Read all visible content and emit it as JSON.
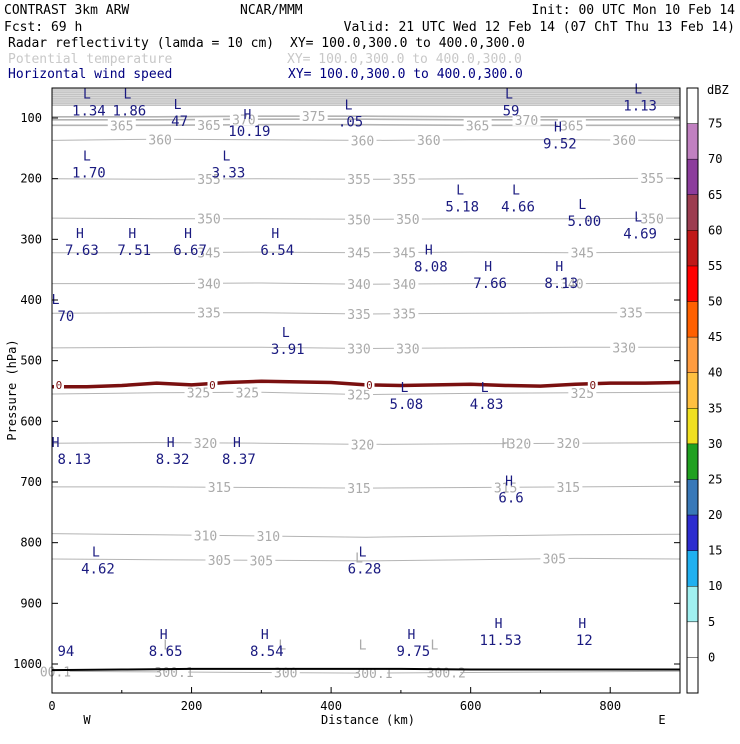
{
  "header": {
    "line1_left": "CONTRAST  3km ARW",
    "line1_mid": "NCAR/MMM",
    "line1_right": "Init: 00 UTC Mon 10 Feb 14",
    "line2_left": "Fcst:   69 h",
    "line2_right": "Valid: 21 UTC Wed 12 Feb 14 (07 ChT Thu 13 Feb 14)"
  },
  "fields": [
    {
      "name": "Radar reflectivity (lamda = 10 cm)",
      "xy": "XY= 100.0,300.0 to 400.0,300.0",
      "color": "#000000"
    },
    {
      "name": "Potential temperature",
      "xy": "XY= 100.0,300.0 to 400.0,300.0",
      "color": "#c8c8c8"
    },
    {
      "name": "Horizontal wind speed",
      "xy": "XY= 100.0,300.0 to 400.0,300.0",
      "color": "#000080"
    }
  ],
  "colors": {
    "theta": "#b4b4b4",
    "theta_label": "#aaaaaa",
    "wind": "#1a1a80",
    "zero_line": "#7a1010",
    "frame": "#000000"
  },
  "chart_data": {
    "type": "cross-section",
    "xlabel": "Distance (km)",
    "ylabel": "Pressure (hPa)",
    "xlim": [
      0,
      900
    ],
    "ylim_hpa": [
      1050,
      75
    ],
    "x_ticks": [
      0,
      200,
      400,
      600,
      800
    ],
    "y_ticks": [
      100,
      200,
      300,
      400,
      500,
      600,
      700,
      800,
      900,
      1000
    ],
    "x_end_labels": {
      "left": "W",
      "right": "E"
    },
    "theta_contours": [
      {
        "value": 305,
        "p": [
          827,
          828,
          829,
          830,
          828,
          826,
          827
        ],
        "labels": [
          {
            "x": 240,
            "text": "305"
          },
          {
            "x": 300,
            "text": "305"
          },
          {
            "x": 720,
            "text": "305"
          }
        ]
      },
      {
        "value": 310,
        "p": [
          785,
          787,
          789,
          791,
          789,
          787,
          786
        ],
        "labels": [
          {
            "x": 220,
            "text": "310"
          },
          {
            "x": 310,
            "text": "310"
          }
        ]
      },
      {
        "value": 315,
        "p": [
          708,
          708,
          709,
          710,
          709,
          708,
          707
        ],
        "labels": [
          {
            "x": 240,
            "text": "315"
          },
          {
            "x": 440,
            "text": "315"
          },
          {
            "x": 650,
            "text": "315"
          },
          {
            "x": 740,
            "text": "315"
          }
        ]
      },
      {
        "value": 320,
        "p": [
          636,
          635,
          636,
          638,
          637,
          636,
          635
        ],
        "labels": [
          {
            "x": 220,
            "text": "320"
          },
          {
            "x": 445,
            "text": "320"
          },
          {
            "x": 670,
            "text": "320"
          },
          {
            "x": 740,
            "text": "320"
          }
        ]
      },
      {
        "value": 325,
        "p": [
          555,
          553,
          552,
          556,
          554,
          553,
          552
        ],
        "labels": [
          {
            "x": 210,
            "text": "325"
          },
          {
            "x": 280,
            "text": "325"
          },
          {
            "x": 440,
            "text": "325"
          },
          {
            "x": 760,
            "text": "325"
          }
        ]
      },
      {
        "value": 330,
        "p": [
          479,
          478,
          478,
          480,
          479,
          478,
          478
        ],
        "labels": [
          {
            "x": 440,
            "text": "330"
          },
          {
            "x": 510,
            "text": "330"
          },
          {
            "x": 820,
            "text": "330"
          }
        ]
      },
      {
        "value": 335,
        "p": [
          422,
          421,
          421,
          423,
          422,
          421,
          421
        ],
        "labels": [
          {
            "x": 225,
            "text": "335"
          },
          {
            "x": 440,
            "text": "335"
          },
          {
            "x": 505,
            "text": "335"
          },
          {
            "x": 830,
            "text": "335"
          }
        ]
      },
      {
        "value": 340,
        "p": [
          373,
          373,
          372,
          374,
          373,
          373,
          372
        ],
        "labels": [
          {
            "x": 225,
            "text": "340"
          },
          {
            "x": 440,
            "text": "340"
          },
          {
            "x": 505,
            "text": "340"
          },
          {
            "x": 745,
            "text": "340"
          }
        ]
      },
      {
        "value": 345,
        "p": [
          322,
          322,
          321,
          322,
          321,
          322,
          321
        ],
        "labels": [
          {
            "x": 225,
            "text": "345"
          },
          {
            "x": 440,
            "text": "345"
          },
          {
            "x": 505,
            "text": "345"
          },
          {
            "x": 760,
            "text": "345"
          }
        ]
      },
      {
        "value": 350,
        "p": [
          265,
          266,
          266,
          267,
          266,
          266,
          265
        ],
        "labels": [
          {
            "x": 225,
            "text": "350"
          },
          {
            "x": 440,
            "text": "350"
          },
          {
            "x": 510,
            "text": "350"
          },
          {
            "x": 860,
            "text": "350"
          }
        ]
      },
      {
        "value": 355,
        "p": [
          200,
          201,
          200,
          201,
          200,
          200,
          199
        ],
        "labels": [
          {
            "x": 225,
            "text": "355"
          },
          {
            "x": 440,
            "text": "355"
          },
          {
            "x": 505,
            "text": "355"
          },
          {
            "x": 860,
            "text": "355"
          }
        ]
      },
      {
        "value": 360,
        "p": [
          137,
          135,
          136,
          137,
          136,
          136,
          137
        ],
        "labels": [
          {
            "x": 155,
            "text": "360"
          },
          {
            "x": 445,
            "text": "360"
          },
          {
            "x": 540,
            "text": "360"
          },
          {
            "x": 820,
            "text": "360"
          }
        ]
      },
      {
        "value": 365,
        "p": [
          112,
          112,
          111,
          111,
          112,
          112,
          112
        ],
        "labels": [
          {
            "x": 100,
            "text": "365"
          },
          {
            "x": 225,
            "text": "365"
          },
          {
            "x": 610,
            "text": "365"
          },
          {
            "x": 745,
            "text": "365"
          }
        ]
      },
      {
        "value": 370,
        "p": [
          103,
          103,
          102,
          102,
          103,
          103,
          103
        ],
        "labels": [
          {
            "x": 275,
            "text": "370"
          },
          {
            "x": 680,
            "text": "370"
          }
        ]
      },
      {
        "value": 375,
        "p": [
          98,
          98,
          97,
          97,
          98,
          98,
          98
        ],
        "labels": [
          {
            "x": 375,
            "text": "375"
          }
        ]
      },
      {
        "value": 300,
        "p": [
          1012,
          1013,
          1014,
          1015,
          1014,
          1013,
          1012
        ],
        "labels": [
          {
            "x": 175,
            "text": "300.1"
          },
          {
            "x": 335,
            "text": "300"
          },
          {
            "x": 460,
            "text": "300.1"
          },
          {
            "x": 565,
            "text": "300.2"
          },
          {
            "x": 5,
            "text": "00.1"
          }
        ]
      }
    ],
    "theta_contour_x": [
      0,
      150,
      300,
      450,
      600,
      750,
      900
    ],
    "theta_LH": [
      {
        "x": 165,
        "p": 976,
        "text": "L"
      },
      {
        "x": 330,
        "p": 976,
        "text": "L"
      },
      {
        "x": 445,
        "p": 976,
        "text": "L"
      },
      {
        "x": 548,
        "p": 976,
        "text": "L"
      },
      {
        "x": 440,
        "p": 833,
        "text": "L"
      },
      {
        "x": 650,
        "p": 644,
        "text": "H"
      }
    ],
    "wind_markers": [
      {
        "x": 50,
        "p": 68,
        "type": "L",
        "value": "1.34"
      },
      {
        "x": 108,
        "p": 68,
        "type": "L",
        "value": "1.86"
      },
      {
        "x": 180,
        "p": 85,
        "type": "L",
        "value": "47"
      },
      {
        "x": 280,
        "p": 102,
        "type": "H",
        "value": "10.19"
      },
      {
        "x": 425,
        "p": 86,
        "type": "L",
        "value": ".05"
      },
      {
        "x": 655,
        "p": 68,
        "type": "L",
        "value": "59"
      },
      {
        "x": 840,
        "p": 60,
        "type": "L",
        "value": "1.13"
      },
      {
        "x": 725,
        "p": 122,
        "type": "H",
        "value": "9.52"
      },
      {
        "x": 50,
        "p": 170,
        "type": "L",
        "value": "1.70"
      },
      {
        "x": 250,
        "p": 170,
        "type": "L",
        "value": "3.33"
      },
      {
        "x": 585,
        "p": 226,
        "type": "L",
        "value": "5.18"
      },
      {
        "x": 665,
        "p": 226,
        "type": "L",
        "value": "4.66"
      },
      {
        "x": 760,
        "p": 250,
        "type": "L",
        "value": "5.00"
      },
      {
        "x": 840,
        "p": 271,
        "type": "L",
        "value": "4.69"
      },
      {
        "x": 40,
        "p": 298,
        "type": "H",
        "value": "7.63"
      },
      {
        "x": 115,
        "p": 298,
        "type": "H",
        "value": "7.51"
      },
      {
        "x": 195,
        "p": 298,
        "type": "H",
        "value": "6.67"
      },
      {
        "x": 320,
        "p": 298,
        "type": "H",
        "value": "6.54"
      },
      {
        "x": 540,
        "p": 325,
        "type": "H",
        "value": "8.08"
      },
      {
        "x": 625,
        "p": 352,
        "type": "H",
        "value": "7.66"
      },
      {
        "x": 727,
        "p": 352,
        "type": "H",
        "value": "8.13"
      },
      {
        "x": 5,
        "p": 407,
        "type": "L",
        "value": "70"
      },
      {
        "x": 335,
        "p": 461,
        "type": "L",
        "value": "3.91"
      },
      {
        "x": 505,
        "p": 552,
        "type": "L",
        "value": "5.08"
      },
      {
        "x": 620,
        "p": 552,
        "type": "L",
        "value": "4.83"
      },
      {
        "x": 5,
        "p": 642,
        "type": "H",
        "value": "8.13"
      },
      {
        "x": 170,
        "p": 642,
        "type": "H",
        "value": "8.32"
      },
      {
        "x": 265,
        "p": 642,
        "type": "H",
        "value": "8.37"
      },
      {
        "x": 655,
        "p": 706,
        "type": "H",
        "value": "6.6"
      },
      {
        "x": 63,
        "p": 823,
        "type": "L",
        "value": "4.62"
      },
      {
        "x": 445,
        "p": 823,
        "type": "L",
        "value": "6.28"
      },
      {
        "x": 5,
        "p": 959,
        "type": "",
        "value": "94"
      },
      {
        "x": 160,
        "p": 959,
        "type": "H",
        "value": "8.65"
      },
      {
        "x": 305,
        "p": 959,
        "type": "H",
        "value": "8.54"
      },
      {
        "x": 515,
        "p": 959,
        "type": "H",
        "value": "9.75"
      },
      {
        "x": 640,
        "p": 941,
        "type": "H",
        "value": "11.53"
      },
      {
        "x": 760,
        "p": 941,
        "type": "H",
        "value": "12"
      }
    ],
    "zero_dbz_line": {
      "x": [
        0,
        50,
        100,
        150,
        200,
        250,
        300,
        350,
        400,
        450,
        500,
        550,
        600,
        650,
        700,
        750,
        800,
        850,
        900
      ],
      "p": [
        543,
        543,
        541,
        537,
        540,
        536,
        534,
        535,
        536,
        540,
        541,
        540,
        539,
        541,
        542,
        539,
        537,
        537,
        536
      ],
      "labels": [
        {
          "x": 10,
          "text": "0"
        },
        {
          "x": 230,
          "text": "0"
        },
        {
          "x": 455,
          "text": "0"
        },
        {
          "x": 775,
          "text": "0"
        }
      ]
    },
    "surface_line": {
      "x": [
        0,
        100,
        200,
        300,
        400,
        500,
        600,
        700,
        800,
        900
      ],
      "p": [
        1010,
        1009,
        1008,
        1008,
        1008,
        1008,
        1009,
        1009,
        1009,
        1009
      ]
    },
    "colorbar": {
      "unit": "dBZ",
      "levels": [
        "75",
        "70",
        "65",
        "60",
        "55",
        "50",
        "45",
        "40",
        "35",
        "30",
        "25",
        "20",
        "15",
        "10",
        "5",
        "0"
      ],
      "colors": [
        "#ffffff",
        "#c080c0",
        "#8c3c9c",
        "#9c3c50",
        "#c01818",
        "#ff0000",
        "#ff6000",
        "#ff9c40",
        "#ffc040",
        "#f0e020",
        "#20a020",
        "#3878b8",
        "#2c2cd0",
        "#20b0f0",
        "#a0f0f0",
        "#ffffff",
        "#ffffff"
      ]
    }
  }
}
